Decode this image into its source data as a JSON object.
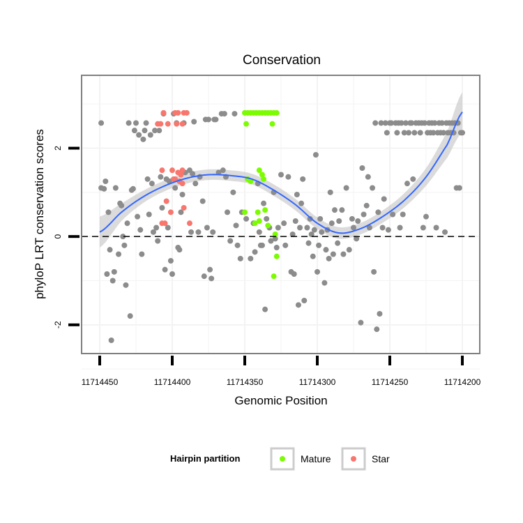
{
  "chart_data": {
    "type": "scatter",
    "title": "Conservation",
    "xlabel": "Genomic Position",
    "ylabel": "phyloP LRT conservation scores",
    "x_reversed": true,
    "xlim": [
      11714200,
      11714450
    ],
    "ylim": [
      -2.65,
      3.65
    ],
    "x_ticks": [
      11714450,
      11714400,
      11714350,
      11714300,
      11714250,
      11714200
    ],
    "x_tick_labels": [
      "11714450",
      "11714400",
      "11714350",
      "11714300",
      "11714250",
      "11714200"
    ],
    "y_ticks": [
      -2,
      0,
      2
    ],
    "y_tick_labels": [
      "-2",
      "0",
      "2"
    ],
    "reference_line": {
      "y": 0,
      "style": "dashed"
    },
    "legend": {
      "title": "Hairpin partition",
      "position": "bottom",
      "entries": [
        {
          "label": "Mature",
          "color": "#7CFC00"
        },
        {
          "label": "Star",
          "color": "#F8766D"
        }
      ]
    },
    "colors": {
      "other": "#8C8C8C",
      "mature": "#7CFC00",
      "star": "#F8766D",
      "smooth": "#3366FF",
      "ribbon": "#BEBEBE",
      "panel_grid": "#F3F3F3",
      "panel_border": "#7F7F7F"
    },
    "smooth_curve": {
      "x": [
        11714450,
        11714435,
        11714420,
        11714405,
        11714390,
        11714375,
        11714360,
        11714345,
        11714330,
        11714315,
        11714300,
        11714285,
        11714270,
        11714255,
        11714240,
        11714225,
        11714210,
        11714200
      ],
      "y": [
        0.1,
        0.55,
        0.9,
        1.15,
        1.32,
        1.4,
        1.38,
        1.3,
        1.05,
        0.72,
        0.3,
        0.08,
        0.18,
        0.45,
        0.82,
        1.35,
        2.1,
        2.82
      ],
      "ci_width": [
        0.35,
        0.2,
        0.14,
        0.12,
        0.12,
        0.12,
        0.12,
        0.12,
        0.13,
        0.13,
        0.13,
        0.13,
        0.13,
        0.14,
        0.16,
        0.2,
        0.3,
        0.45
      ]
    },
    "series": [
      {
        "name": "Other",
        "points": [
          [
            11714449,
            2.57
          ],
          [
            11714449,
            1.1
          ],
          [
            11714447,
            1.08
          ],
          [
            11714446,
            1.25
          ],
          [
            11714445,
            -0.85
          ],
          [
            11714444,
            0.55
          ],
          [
            11714443,
            -0.3
          ],
          [
            11714442,
            -2.35
          ],
          [
            11714441,
            -1.0
          ],
          [
            11714440,
            -0.8
          ],
          [
            11714439,
            1.1
          ],
          [
            11714437,
            -0.4
          ],
          [
            11714436,
            0.75
          ],
          [
            11714435,
            0.7
          ],
          [
            11714434,
            0.0
          ],
          [
            11714433,
            -0.2
          ],
          [
            11714432,
            -1.1
          ],
          [
            11714431,
            0.3
          ],
          [
            11714430,
            2.57
          ],
          [
            11714429,
            -1.8
          ],
          [
            11714428,
            1.05
          ],
          [
            11714427,
            1.08
          ],
          [
            11714426,
            2.4
          ],
          [
            11714425,
            2.57
          ],
          [
            11714424,
            0.45
          ],
          [
            11714423,
            2.3
          ],
          [
            11714422,
            0.15
          ],
          [
            11714421,
            -0.4
          ],
          [
            11714420,
            2.2
          ],
          [
            11714419,
            2.4
          ],
          [
            11714418,
            2.57
          ],
          [
            11714417,
            1.3
          ],
          [
            11714416,
            0.5
          ],
          [
            11714415,
            2.3
          ],
          [
            11714414,
            1.2
          ],
          [
            11714413,
            0.1
          ],
          [
            11714412,
            2.4
          ],
          [
            11714411,
            0.2
          ],
          [
            11714410,
            -0.1
          ],
          [
            11714409,
            2.4
          ],
          [
            11714408,
            1.35
          ],
          [
            11714407,
            0.65
          ],
          [
            11714406,
            2.78
          ],
          [
            11714405,
            -0.75
          ],
          [
            11714404,
            1.3
          ],
          [
            11714403,
            0.2
          ],
          [
            11714402,
            1.25
          ],
          [
            11714401,
            -0.55
          ],
          [
            11714400,
            -0.85
          ],
          [
            11714399,
            2.78
          ],
          [
            11714398,
            1.1
          ],
          [
            11714397,
            2.57
          ],
          [
            11714396,
            -0.25
          ],
          [
            11714395,
            -0.3
          ],
          [
            11714394,
            0.55
          ],
          [
            11714393,
            0.95
          ],
          [
            11714392,
            2.57
          ],
          [
            11714391,
            1.45
          ],
          [
            11714388,
            1.5
          ],
          [
            11714387,
            0.1
          ],
          [
            11714386,
            1.42
          ],
          [
            11714385,
            2.6
          ],
          [
            11714384,
            1.2
          ],
          [
            11714382,
            0.1
          ],
          [
            11714381,
            1.35
          ],
          [
            11714379,
            0.8
          ],
          [
            11714378,
            -0.9
          ],
          [
            11714377,
            2.65
          ],
          [
            11714376,
            0.2
          ],
          [
            11714375,
            2.65
          ],
          [
            11714374,
            -0.75
          ],
          [
            11714373,
            -0.95
          ],
          [
            11714372,
            0.1
          ],
          [
            11714371,
            2.65
          ],
          [
            11714370,
            2.65
          ],
          [
            11714368,
            1.45
          ],
          [
            11714366,
            2.78
          ],
          [
            11714365,
            1.5
          ],
          [
            11714364,
            2.78
          ],
          [
            11714363,
            1.35
          ],
          [
            11714362,
            0.55
          ],
          [
            11714360,
            -0.1
          ],
          [
            11714358,
            1.0
          ],
          [
            11714357,
            2.78
          ],
          [
            11714356,
            0.25
          ],
          [
            11714355,
            -0.2
          ],
          [
            11714353,
            -0.5
          ],
          [
            11714352,
            0.55
          ],
          [
            11714349,
            0.4
          ],
          [
            11714346,
            -0.5
          ],
          [
            11714344,
            0.3
          ],
          [
            11714343,
            -0.35
          ],
          [
            11714341,
            1.2
          ],
          [
            11714340,
            0.1
          ],
          [
            11714339,
            -0.2
          ],
          [
            11714338,
            -0.2
          ],
          [
            11714337,
            0.75
          ],
          [
            11714336,
            -1.65
          ],
          [
            11714335,
            0.4
          ],
          [
            11714333,
            0.2
          ],
          [
            11714332,
            -0.1
          ],
          [
            11714330,
            1.0
          ],
          [
            11714329,
            -0.05
          ],
          [
            11714328,
            -0.25
          ],
          [
            11714327,
            0.2
          ],
          [
            11714325,
            1.4
          ],
          [
            11714323,
            0.3
          ],
          [
            11714322,
            -0.2
          ],
          [
            11714320,
            1.35
          ],
          [
            11714318,
            -0.8
          ],
          [
            11714317,
            0.05
          ],
          [
            11714316,
            -0.85
          ],
          [
            11714315,
            0.35
          ],
          [
            11714314,
            0.95
          ],
          [
            11714313,
            -1.55
          ],
          [
            11714312,
            0.2
          ],
          [
            11714311,
            0.75
          ],
          [
            11714310,
            1.3
          ],
          [
            11714309,
            -1.45
          ],
          [
            11714307,
            0.2
          ],
          [
            11714306,
            -0.15
          ],
          [
            11714305,
            0.4
          ],
          [
            11714304,
            0.05
          ],
          [
            11714303,
            -0.45
          ],
          [
            11714302,
            0.15
          ],
          [
            11714301,
            1.85
          ],
          [
            11714300,
            -0.8
          ],
          [
            11714299,
            -0.2
          ],
          [
            11714298,
            0.4
          ],
          [
            11714297,
            0.1
          ],
          [
            11714295,
            -1.05
          ],
          [
            11714294,
            -0.3
          ],
          [
            11714293,
            0.15
          ],
          [
            11714292,
            -0.5
          ],
          [
            11714291,
            1.0
          ],
          [
            11714290,
            0.3
          ],
          [
            11714289,
            -0.4
          ],
          [
            11714288,
            0.6
          ],
          [
            11714286,
            -0.15
          ],
          [
            11714285,
            0.35
          ],
          [
            11714283,
            0.6
          ],
          [
            11714282,
            -0.4
          ],
          [
            11714280,
            1.1
          ],
          [
            11714278,
            -0.3
          ],
          [
            11714276,
            0.4
          ],
          [
            11714275,
            0.2
          ],
          [
            11714273,
            -0.05
          ],
          [
            11714272,
            0.35
          ],
          [
            11714270,
            -1.95
          ],
          [
            11714269,
            1.55
          ],
          [
            11714268,
            0.5
          ],
          [
            11714266,
            0.7
          ],
          [
            11714265,
            1.35
          ],
          [
            11714264,
            0.2
          ],
          [
            11714262,
            1.1
          ],
          [
            11714261,
            -0.8
          ],
          [
            11714260,
            2.57
          ],
          [
            11714259,
            -2.1
          ],
          [
            11714258,
            0.55
          ],
          [
            11714257,
            -1.75
          ],
          [
            11714256,
            2.57
          ],
          [
            11714255,
            0.2
          ],
          [
            11714254,
            0.85
          ],
          [
            11714253,
            2.57
          ],
          [
            11714252,
            2.35
          ],
          [
            11714251,
            0.15
          ],
          [
            11714250,
            2.57
          ],
          [
            11714249,
            2.57
          ],
          [
            11714248,
            0.5
          ],
          [
            11714246,
            2.57
          ],
          [
            11714245,
            2.35
          ],
          [
            11714244,
            2.57
          ],
          [
            11714243,
            0.2
          ],
          [
            11714242,
            2.57
          ],
          [
            11714241,
            0.5
          ],
          [
            11714240,
            2.35
          ],
          [
            11714239,
            2.57
          ],
          [
            11714238,
            1.2
          ],
          [
            11714237,
            2.35
          ],
          [
            11714236,
            2.57
          ],
          [
            11714235,
            2.57
          ],
          [
            11714234,
            1.3
          ],
          [
            11714233,
            2.35
          ],
          [
            11714232,
            2.57
          ],
          [
            11714230,
            2.57
          ],
          [
            11714229,
            2.35
          ],
          [
            11714228,
            2.57
          ],
          [
            11714227,
            0.2
          ],
          [
            11714226,
            2.57
          ],
          [
            11714225,
            0.45
          ],
          [
            11714224,
            2.35
          ],
          [
            11714223,
            2.57
          ],
          [
            11714222,
            2.35
          ],
          [
            11714221,
            2.57
          ],
          [
            11714220,
            2.35
          ],
          [
            11714219,
            2.57
          ],
          [
            11714218,
            0.2
          ],
          [
            11714217,
            2.35
          ],
          [
            11714216,
            2.57
          ],
          [
            11714215,
            2.35
          ],
          [
            11714214,
            2.57
          ],
          [
            11714213,
            2.35
          ],
          [
            11714212,
            0.1
          ],
          [
            11714211,
            2.57
          ],
          [
            11714210,
            2.35
          ],
          [
            11714209,
            2.57
          ],
          [
            11714208,
            2.35
          ],
          [
            11714207,
            2.57
          ],
          [
            11714206,
            2.35
          ],
          [
            11714205,
            2.57
          ],
          [
            11714204,
            1.1
          ],
          [
            11714203,
            2.57
          ],
          [
            11714202,
            1.1
          ],
          [
            11714201,
            2.35
          ],
          [
            11714200,
            2.35
          ]
        ]
      },
      {
        "name": "Mature",
        "points": [
          [
            11714350,
            2.8
          ],
          [
            11714348,
            2.8
          ],
          [
            11714346,
            2.8
          ],
          [
            11714344,
            2.8
          ],
          [
            11714342,
            2.8
          ],
          [
            11714340,
            2.8
          ],
          [
            11714338,
            2.8
          ],
          [
            11714336,
            2.8
          ],
          [
            11714334,
            2.8
          ],
          [
            11714332,
            2.8
          ],
          [
            11714330,
            2.8
          ],
          [
            11714328,
            2.8
          ],
          [
            11714349,
            2.55
          ],
          [
            11714331,
            2.55
          ],
          [
            11714348,
            1.3
          ],
          [
            11714346,
            1.25
          ],
          [
            11714340,
            1.5
          ],
          [
            11714338,
            1.4
          ],
          [
            11714337,
            1.3
          ],
          [
            11714350,
            0.55
          ],
          [
            11714341,
            0.55
          ],
          [
            11714340,
            0.35
          ],
          [
            11714343,
            0.3
          ],
          [
            11714336,
            0.6
          ],
          [
            11714334,
            0.25
          ],
          [
            11714329,
            0.05
          ],
          [
            11714328,
            -0.45
          ],
          [
            11714330,
            -0.9
          ]
        ]
      },
      {
        "name": "Star",
        "points": [
          [
            11714410,
            2.55
          ],
          [
            11714408,
            2.55
          ],
          [
            11714403,
            2.55
          ],
          [
            11714397,
            2.55
          ],
          [
            11714393,
            2.55
          ],
          [
            11714406,
            2.8
          ],
          [
            11714398,
            2.8
          ],
          [
            11714396,
            2.8
          ],
          [
            11714392,
            2.8
          ],
          [
            11714390,
            2.8
          ],
          [
            11714407,
            1.5
          ],
          [
            11714400,
            1.5
          ],
          [
            11714393,
            1.5
          ],
          [
            11714398,
            1.3
          ],
          [
            11714395,
            1.25
          ],
          [
            11714393,
            1.2
          ],
          [
            11714404,
            0.8
          ],
          [
            11714399,
            1.3
          ],
          [
            11714394,
            1.4
          ],
          [
            11714396,
            1.45
          ],
          [
            11714405,
            0.3
          ],
          [
            11714407,
            0.3
          ],
          [
            11714392,
            0.65
          ],
          [
            11714388,
            0.3
          ],
          [
            11714401,
            0.55
          ]
        ]
      }
    ]
  }
}
